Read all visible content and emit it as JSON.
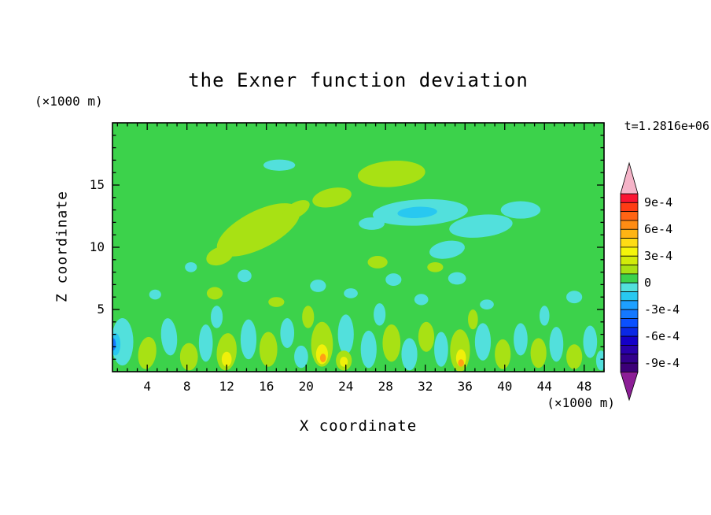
{
  "title": "the Exner function deviation",
  "time_label": "t=1.2816e+06",
  "axes": {
    "x": {
      "label": "X coordinate",
      "unit": "(×1000 m)",
      "min": 0.5,
      "max": 50,
      "major_ticks": [
        4,
        8,
        12,
        16,
        20,
        24,
        28,
        32,
        36,
        40,
        44,
        48
      ],
      "minor_step": 1
    },
    "y": {
      "label": "Z coordinate",
      "unit": "(×1000 m)",
      "min": 0,
      "max": 20,
      "major_ticks": [
        5,
        10,
        15
      ],
      "minor_step": 1
    }
  },
  "colorbar": {
    "tick_labels": [
      "9e-4",
      "6e-4",
      "3e-4",
      "0",
      "-3e-4",
      "-6e-4",
      "-9e-4"
    ],
    "boundary_indices": [
      1,
      4,
      7,
      10,
      13,
      16,
      19
    ],
    "top_value": "1e-3",
    "step": "1e-4",
    "segment_colors_top_to_bottom": [
      "#fa1432",
      "#ff3c14",
      "#ff6414",
      "#ff8c14",
      "#ffb414",
      "#ffdc14",
      "#f5f50a",
      "#d2eb0a",
      "#a8e114",
      "#3cd24b",
      "#52e0dc",
      "#28c8f0",
      "#1ea0ff",
      "#1478ff",
      "#0a50ff",
      "#0a28e6",
      "#1400c8",
      "#2800aa",
      "#32008c",
      "#3c0078"
    ],
    "over_arrow_color": "#f5b4c8",
    "under_arrow_color": "#8c1e96"
  },
  "chart_data": {
    "type": "heatmap",
    "field_name": "Exner function deviation",
    "title": "the Exner function deviation",
    "xlabel": "X coordinate (×1000 m)",
    "ylabel": "Z coordinate (×1000 m)",
    "x_range": [
      0.5,
      50
    ],
    "y_range": [
      0,
      20
    ],
    "value_levels": [
      "-9e-4",
      "-6e-4",
      "-3e-4",
      "0",
      "3e-4",
      "6e-4",
      "9e-4"
    ],
    "background_value_band": "0 to 1e-4",
    "palette": {
      "base": "#3cd24b",
      "yg": "#a8e114",
      "y": "#f0f00a",
      "o": "#ffa014",
      "c": "#52e0dc",
      "c2": "#28c8f0",
      "b": "#1478ff"
    },
    "blobs": [
      {
        "x": 17.3,
        "y": 16.6,
        "rx": 1.6,
        "ry": 0.45,
        "rot": 0,
        "c": "c"
      },
      {
        "x": 28.6,
        "y": 15.9,
        "rx": 3.4,
        "ry": 1.05,
        "rot": -4,
        "c": "yg"
      },
      {
        "x": 22.6,
        "y": 14.0,
        "rx": 2.0,
        "ry": 0.75,
        "rot": -12,
        "c": "yg"
      },
      {
        "x": 15.2,
        "y": 11.4,
        "rx": 4.6,
        "ry": 1.5,
        "rot": -27,
        "c": "yg"
      },
      {
        "x": 11.3,
        "y": 9.3,
        "rx": 1.4,
        "ry": 0.7,
        "rot": -20,
        "c": "yg"
      },
      {
        "x": 19.0,
        "y": 13.0,
        "rx": 1.5,
        "ry": 0.6,
        "rot": -30,
        "c": "yg"
      },
      {
        "x": 31.5,
        "y": 12.8,
        "rx": 4.8,
        "ry": 1.05,
        "rot": -3,
        "c": "c"
      },
      {
        "x": 31.2,
        "y": 12.8,
        "rx": 2.0,
        "ry": 0.45,
        "rot": -3,
        "c": "c2"
      },
      {
        "x": 37.6,
        "y": 11.7,
        "rx": 3.2,
        "ry": 0.9,
        "rot": -6,
        "c": "c"
      },
      {
        "x": 41.6,
        "y": 13.0,
        "rx": 2.0,
        "ry": 0.7,
        "rot": 0,
        "c": "c"
      },
      {
        "x": 26.6,
        "y": 11.9,
        "rx": 1.3,
        "ry": 0.5,
        "rot": 0,
        "c": "c"
      },
      {
        "x": 34.2,
        "y": 9.8,
        "rx": 1.8,
        "ry": 0.7,
        "rot": -10,
        "c": "c"
      },
      {
        "x": 13.8,
        "y": 7.7,
        "rx": 0.7,
        "ry": 0.5,
        "rot": 0,
        "c": "c"
      },
      {
        "x": 10.8,
        "y": 6.3,
        "rx": 0.8,
        "ry": 0.5,
        "rot": 0,
        "c": "yg"
      },
      {
        "x": 21.2,
        "y": 6.9,
        "rx": 0.8,
        "ry": 0.5,
        "rot": 0,
        "c": "c"
      },
      {
        "x": 24.5,
        "y": 6.3,
        "rx": 0.7,
        "ry": 0.4,
        "rot": 0,
        "c": "c"
      },
      {
        "x": 27.2,
        "y": 8.8,
        "rx": 1.0,
        "ry": 0.5,
        "rot": 0,
        "c": "yg"
      },
      {
        "x": 28.8,
        "y": 7.4,
        "rx": 0.8,
        "ry": 0.5,
        "rot": 0,
        "c": "c"
      },
      {
        "x": 31.6,
        "y": 5.8,
        "rx": 0.7,
        "ry": 0.45,
        "rot": 0,
        "c": "c"
      },
      {
        "x": 35.2,
        "y": 7.5,
        "rx": 0.9,
        "ry": 0.5,
        "rot": 0,
        "c": "c"
      },
      {
        "x": 33.0,
        "y": 8.4,
        "rx": 0.8,
        "ry": 0.4,
        "rot": 0,
        "c": "yg"
      },
      {
        "x": 38.2,
        "y": 5.4,
        "rx": 0.7,
        "ry": 0.4,
        "rot": 0,
        "c": "c"
      },
      {
        "x": 47.0,
        "y": 6.0,
        "rx": 0.8,
        "ry": 0.5,
        "rot": 0,
        "c": "c"
      },
      {
        "x": 17.0,
        "y": 5.6,
        "rx": 0.8,
        "ry": 0.4,
        "rot": 0,
        "c": "yg"
      },
      {
        "x": 4.8,
        "y": 6.2,
        "rx": 0.6,
        "ry": 0.4,
        "rot": 0,
        "c": "c"
      },
      {
        "x": 8.4,
        "y": 8.4,
        "rx": 0.6,
        "ry": 0.4,
        "rot": 0,
        "c": "c"
      },
      {
        "x": 1.5,
        "y": 2.4,
        "rx": 1.1,
        "ry": 1.9,
        "rot": 0,
        "c": "c"
      },
      {
        "x": 0.8,
        "y": 2.2,
        "rx": 0.5,
        "ry": 0.9,
        "rot": 0,
        "c": "c2"
      },
      {
        "x": 0.55,
        "y": 2.2,
        "rx": 0.3,
        "ry": 0.5,
        "rot": 0,
        "c": "b"
      },
      {
        "x": 4.0,
        "y": 1.5,
        "rx": 0.9,
        "ry": 1.3,
        "rot": 8,
        "c": "yg"
      },
      {
        "x": 6.2,
        "y": 2.8,
        "rx": 0.8,
        "ry": 1.5,
        "rot": -5,
        "c": "c"
      },
      {
        "x": 8.2,
        "y": 1.2,
        "rx": 0.9,
        "ry": 1.1,
        "rot": 0,
        "c": "yg"
      },
      {
        "x": 9.9,
        "y": 2.3,
        "rx": 0.7,
        "ry": 1.5,
        "rot": 0,
        "c": "c"
      },
      {
        "x": 12.0,
        "y": 1.6,
        "rx": 1.0,
        "ry": 1.5,
        "rot": 5,
        "c": "yg"
      },
      {
        "x": 12.0,
        "y": 1.0,
        "rx": 0.5,
        "ry": 0.6,
        "rot": 0,
        "c": "y"
      },
      {
        "x": 14.2,
        "y": 2.6,
        "rx": 0.8,
        "ry": 1.6,
        "rot": 0,
        "c": "c"
      },
      {
        "x": 16.2,
        "y": 1.8,
        "rx": 0.9,
        "ry": 1.4,
        "rot": 0,
        "c": "yg"
      },
      {
        "x": 18.1,
        "y": 3.1,
        "rx": 0.7,
        "ry": 1.2,
        "rot": 0,
        "c": "c"
      },
      {
        "x": 19.5,
        "y": 1.2,
        "rx": 0.7,
        "ry": 0.9,
        "rot": 0,
        "c": "c"
      },
      {
        "x": 21.6,
        "y": 2.2,
        "rx": 1.1,
        "ry": 1.8,
        "rot": 0,
        "c": "yg"
      },
      {
        "x": 21.6,
        "y": 1.4,
        "rx": 0.6,
        "ry": 0.8,
        "rot": 0,
        "c": "y"
      },
      {
        "x": 21.7,
        "y": 1.1,
        "rx": 0.3,
        "ry": 0.35,
        "rot": 0,
        "c": "o"
      },
      {
        "x": 24.0,
        "y": 3.0,
        "rx": 0.8,
        "ry": 1.6,
        "rot": 0,
        "c": "c"
      },
      {
        "x": 23.8,
        "y": 0.9,
        "rx": 0.8,
        "ry": 0.8,
        "rot": 0,
        "c": "yg"
      },
      {
        "x": 23.8,
        "y": 0.8,
        "rx": 0.4,
        "ry": 0.4,
        "rot": 0,
        "c": "y"
      },
      {
        "x": 26.3,
        "y": 1.8,
        "rx": 0.8,
        "ry": 1.5,
        "rot": 0,
        "c": "c"
      },
      {
        "x": 28.6,
        "y": 2.3,
        "rx": 0.9,
        "ry": 1.5,
        "rot": 0,
        "c": "yg"
      },
      {
        "x": 30.4,
        "y": 1.4,
        "rx": 0.8,
        "ry": 1.3,
        "rot": 0,
        "c": "c"
      },
      {
        "x": 32.1,
        "y": 2.8,
        "rx": 0.8,
        "ry": 1.2,
        "rot": 0,
        "c": "yg"
      },
      {
        "x": 33.6,
        "y": 1.8,
        "rx": 0.7,
        "ry": 1.4,
        "rot": 0,
        "c": "c"
      },
      {
        "x": 35.5,
        "y": 1.7,
        "rx": 1.0,
        "ry": 1.7,
        "rot": 0,
        "c": "yg"
      },
      {
        "x": 35.6,
        "y": 1.1,
        "rx": 0.5,
        "ry": 0.7,
        "rot": 0,
        "c": "y"
      },
      {
        "x": 35.6,
        "y": 0.7,
        "rx": 0.3,
        "ry": 0.3,
        "rot": 0,
        "c": "o"
      },
      {
        "x": 37.8,
        "y": 2.4,
        "rx": 0.8,
        "ry": 1.5,
        "rot": 0,
        "c": "c"
      },
      {
        "x": 39.8,
        "y": 1.4,
        "rx": 0.8,
        "ry": 1.2,
        "rot": 0,
        "c": "yg"
      },
      {
        "x": 41.6,
        "y": 2.6,
        "rx": 0.7,
        "ry": 1.3,
        "rot": 0,
        "c": "c"
      },
      {
        "x": 43.4,
        "y": 1.5,
        "rx": 0.8,
        "ry": 1.2,
        "rot": 0,
        "c": "yg"
      },
      {
        "x": 45.2,
        "y": 2.2,
        "rx": 0.7,
        "ry": 1.4,
        "rot": 0,
        "c": "c"
      },
      {
        "x": 47.0,
        "y": 1.2,
        "rx": 0.8,
        "ry": 1.0,
        "rot": 0,
        "c": "yg"
      },
      {
        "x": 48.6,
        "y": 2.4,
        "rx": 0.7,
        "ry": 1.3,
        "rot": 0,
        "c": "c"
      },
      {
        "x": 49.7,
        "y": 0.9,
        "rx": 0.5,
        "ry": 0.8,
        "rot": 0,
        "c": "c"
      },
      {
        "x": 11.0,
        "y": 4.4,
        "rx": 0.6,
        "ry": 0.9,
        "rot": 0,
        "c": "c"
      },
      {
        "x": 20.2,
        "y": 4.4,
        "rx": 0.6,
        "ry": 0.9,
        "rot": 0,
        "c": "yg"
      },
      {
        "x": 27.4,
        "y": 4.6,
        "rx": 0.6,
        "ry": 0.9,
        "rot": 0,
        "c": "c"
      },
      {
        "x": 36.8,
        "y": 4.2,
        "rx": 0.5,
        "ry": 0.8,
        "rot": 0,
        "c": "yg"
      },
      {
        "x": 44.0,
        "y": 4.5,
        "rx": 0.5,
        "ry": 0.8,
        "rot": 0,
        "c": "c"
      }
    ]
  }
}
